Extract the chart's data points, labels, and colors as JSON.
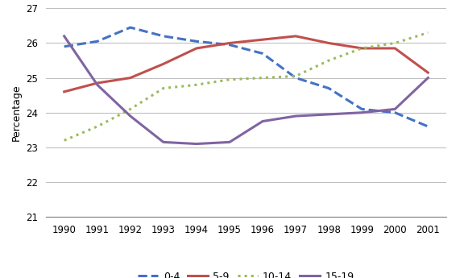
{
  "years": [
    1990,
    1991,
    1992,
    1993,
    1994,
    1995,
    1996,
    1997,
    1998,
    1999,
    2000,
    2001
  ],
  "series": {
    "0-4": [
      25.9,
      26.05,
      26.45,
      26.2,
      26.05,
      25.95,
      25.7,
      25.0,
      24.7,
      24.1,
      24.0,
      23.6
    ],
    "5-9": [
      24.6,
      24.85,
      25.0,
      25.4,
      25.85,
      26.0,
      26.1,
      26.2,
      26.0,
      25.85,
      25.85,
      25.15
    ],
    "10-14": [
      23.2,
      23.6,
      24.1,
      24.7,
      24.8,
      24.95,
      25.0,
      25.05,
      25.5,
      25.85,
      26.0,
      26.3
    ],
    "15-19": [
      26.2,
      24.8,
      23.9,
      23.15,
      23.1,
      23.15,
      23.75,
      23.9,
      23.95,
      24.0,
      24.1,
      25.0
    ]
  },
  "colors": {
    "0-4": "#4472C4",
    "5-9": "#C0504D",
    "10-14": "#9BBB59",
    "15-19": "#8064A2"
  },
  "linestyles": {
    "0-4": "--",
    "5-9": "-",
    "10-14": ":",
    "15-19": "-"
  },
  "linewidths": {
    "0-4": 2.2,
    "5-9": 2.2,
    "10-14": 2.2,
    "15-19": 2.2
  },
  "ylabel": "Percentage",
  "ylim": [
    21,
    27
  ],
  "yticks": [
    21,
    22,
    23,
    24,
    25,
    26,
    27
  ],
  "legend_order": [
    "0-4",
    "5-9",
    "10-14",
    "15-19"
  ],
  "background_color": "#ffffff",
  "grid_color": "#c0c0c0",
  "spine_color": "#808080"
}
